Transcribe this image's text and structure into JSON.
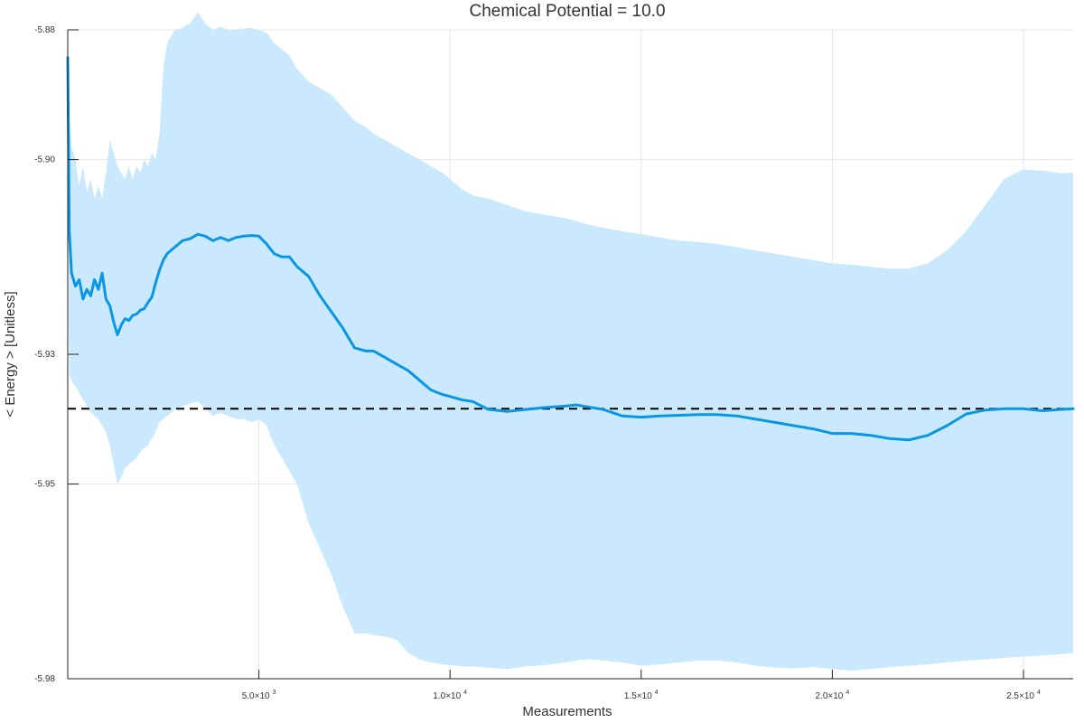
{
  "chart_data": {
    "type": "line",
    "title": "Chemical Potential = 10.0",
    "xlabel": "Measurements",
    "ylabel": "< Energy > [Unitless]",
    "xlim": [
      0,
      26300
    ],
    "ylim": [
      -5.98,
      -5.88
    ],
    "grid": true,
    "legend": "none",
    "x_ticks": [
      {
        "value": 5000,
        "mantissa": "5.0×10",
        "exponent": "3"
      },
      {
        "value": 10000,
        "mantissa": "1.0×10",
        "exponent": "4"
      },
      {
        "value": 15000,
        "mantissa": "1.5×10",
        "exponent": "4"
      },
      {
        "value": 20000,
        "mantissa": "2.0×10",
        "exponent": "4"
      },
      {
        "value": 25000,
        "mantissa": "2.5×10",
        "exponent": "4"
      }
    ],
    "y_ticks": [
      {
        "value": -5.88,
        "label": "-5.88"
      },
      {
        "value": -5.9,
        "label": "-5.90"
      },
      {
        "value": -5.93,
        "label": "-5.93"
      },
      {
        "value": -5.95,
        "label": "-5.95"
      },
      {
        "value": -5.98,
        "label": "-5.98"
      }
    ],
    "reference_line": {
      "y": -5.9384,
      "style": "dashed",
      "color": "#000000"
    },
    "series": [
      {
        "color": "#0a96e6",
        "band_color": "#cbe9fd",
        "x": [
          0,
          40,
          100,
          200,
          300,
          400,
          500,
          600,
          700,
          800,
          900,
          1000,
          1100,
          1200,
          1300,
          1400,
          1500,
          1600,
          1700,
          1800,
          1900,
          2000,
          2100,
          2200,
          2300,
          2400,
          2500,
          2600,
          2800,
          3000,
          3200,
          3400,
          3600,
          3800,
          4000,
          4200,
          4400,
          4600,
          4800,
          5000,
          5200,
          5400,
          5600,
          5800,
          6000,
          6300,
          6600,
          6900,
          7200,
          7500,
          7800,
          8000,
          8300,
          8600,
          8900,
          9200,
          9500,
          9800,
          10000,
          10300,
          10600,
          11000,
          11500,
          12000,
          12500,
          13000,
          13300,
          13600,
          14000,
          14500,
          15000,
          15500,
          16000,
          16500,
          17000,
          17500,
          18000,
          18500,
          19000,
          19500,
          20000,
          20500,
          21000,
          21500,
          22000,
          22500,
          23000,
          23500,
          24000,
          24500,
          25000,
          25500,
          26000,
          26300
        ],
        "y": [
          -5.8843,
          -5.911,
          -5.9175,
          -5.9195,
          -5.9185,
          -5.9215,
          -5.92,
          -5.921,
          -5.9185,
          -5.92,
          -5.9175,
          -5.9215,
          -5.9225,
          -5.925,
          -5.927,
          -5.9255,
          -5.9245,
          -5.9248,
          -5.924,
          -5.9238,
          -5.9232,
          -5.923,
          -5.922,
          -5.9212,
          -5.919,
          -5.917,
          -5.9155,
          -5.9145,
          -5.9135,
          -5.9125,
          -5.9122,
          -5.9115,
          -5.9118,
          -5.9125,
          -5.912,
          -5.9125,
          -5.912,
          -5.9118,
          -5.9117,
          -5.9118,
          -5.913,
          -5.9145,
          -5.915,
          -5.915,
          -5.9165,
          -5.918,
          -5.921,
          -5.9235,
          -5.926,
          -5.929,
          -5.9295,
          -5.9295,
          -5.9305,
          -5.9315,
          -5.9325,
          -5.934,
          -5.9355,
          -5.9362,
          -5.9365,
          -5.937,
          -5.9373,
          -5.9385,
          -5.9388,
          -5.9385,
          -5.9382,
          -5.938,
          -5.9378,
          -5.9381,
          -5.9385,
          -5.9395,
          -5.9397,
          -5.9395,
          -5.9394,
          -5.9393,
          -5.9393,
          -5.9395,
          -5.94,
          -5.9405,
          -5.941,
          -5.9415,
          -5.9422,
          -5.9422,
          -5.9425,
          -5.943,
          -5.9432,
          -5.9425,
          -5.941,
          -5.9392,
          -5.9386,
          -5.9384,
          -5.9384,
          -5.9387,
          -5.9385,
          -5.9384
        ],
        "upper": [
          -5.8843,
          -5.893,
          -5.898,
          -5.9,
          -5.904,
          -5.901,
          -5.905,
          -5.903,
          -5.906,
          -5.904,
          -5.906,
          -5.902,
          -5.897,
          -5.899,
          -5.901,
          -5.902,
          -5.903,
          -5.901,
          -5.903,
          -5.901,
          -5.902,
          -5.9,
          -5.901,
          -5.899,
          -5.9,
          -5.896,
          -5.886,
          -5.882,
          -5.88,
          -5.8797,
          -5.879,
          -5.8773,
          -5.879,
          -5.88,
          -5.8795,
          -5.88,
          -5.88,
          -5.8798,
          -5.8797,
          -5.88,
          -5.8805,
          -5.882,
          -5.883,
          -5.884,
          -5.886,
          -5.888,
          -5.889,
          -5.89,
          -5.892,
          -5.894,
          -5.895,
          -5.896,
          -5.897,
          -5.898,
          -5.899,
          -5.9,
          -5.901,
          -5.902,
          -5.903,
          -5.9045,
          -5.9055,
          -5.906,
          -5.907,
          -5.908,
          -5.9085,
          -5.909,
          -5.9095,
          -5.91,
          -5.9105,
          -5.911,
          -5.9115,
          -5.912,
          -5.9125,
          -5.9127,
          -5.913,
          -5.9135,
          -5.914,
          -5.9145,
          -5.915,
          -5.9155,
          -5.916,
          -5.9162,
          -5.9165,
          -5.9168,
          -5.9168,
          -5.916,
          -5.914,
          -5.911,
          -5.907,
          -5.903,
          -5.9015,
          -5.9017,
          -5.9021,
          -5.902
        ],
        "lower": [
          -5.8843,
          -5.933,
          -5.934,
          -5.935,
          -5.936,
          -5.937,
          -5.938,
          -5.939,
          -5.9395,
          -5.94,
          -5.941,
          -5.942,
          -5.944,
          -5.947,
          -5.95,
          -5.949,
          -5.9475,
          -5.947,
          -5.9465,
          -5.946,
          -5.945,
          -5.9445,
          -5.944,
          -5.943,
          -5.942,
          -5.9405,
          -5.94,
          -5.9395,
          -5.9385,
          -5.938,
          -5.9376,
          -5.9373,
          -5.9383,
          -5.9395,
          -5.939,
          -5.9395,
          -5.94,
          -5.94,
          -5.9405,
          -5.94,
          -5.941,
          -5.944,
          -5.946,
          -5.948,
          -5.95,
          -5.956,
          -5.96,
          -5.964,
          -5.969,
          -5.973,
          -5.973,
          -5.9733,
          -5.9735,
          -5.974,
          -5.976,
          -5.977,
          -5.9775,
          -5.9778,
          -5.9779,
          -5.9781,
          -5.9781,
          -5.9783,
          -5.9785,
          -5.9781,
          -5.9779,
          -5.9775,
          -5.9772,
          -5.977,
          -5.9772,
          -5.9775,
          -5.978,
          -5.9778,
          -5.9775,
          -5.9772,
          -5.9772,
          -5.9775,
          -5.978,
          -5.9783,
          -5.9784,
          -5.9782,
          -5.9785,
          -5.9788,
          -5.9785,
          -5.9782,
          -5.978,
          -5.9778,
          -5.9775,
          -5.9772,
          -5.977,
          -5.9768,
          -5.9766,
          -5.9764,
          -5.9762,
          -5.976
        ]
      }
    ]
  }
}
